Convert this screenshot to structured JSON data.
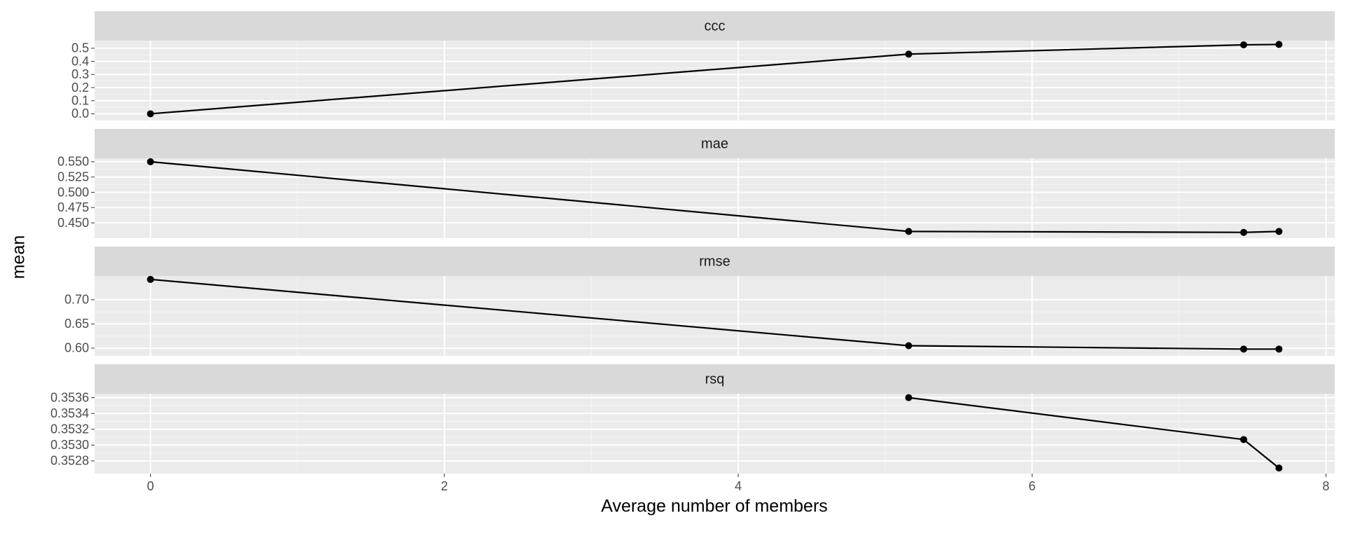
{
  "chart_data": {
    "type": "line",
    "xlabel": "Average number of members",
    "ylabel": "mean",
    "x": [
      0,
      5.16,
      7.44,
      7.68
    ],
    "xlim": [
      -0.38,
      8.06
    ],
    "xticks": [
      0,
      2,
      4,
      6,
      8
    ],
    "color": "#000000",
    "grid": true,
    "minor_grid": true,
    "facets": [
      {
        "title": "ccc",
        "values": [
          0.0,
          0.455,
          0.526,
          0.529
        ],
        "ylim": [
          -0.051,
          0.558
        ],
        "yticks": [
          {
            "value": 0,
            "label": "0.0"
          },
          0.1,
          0.2,
          0.3,
          0.4,
          0.5
        ]
      },
      {
        "title": "mae",
        "values": [
          0.55,
          0.436,
          0.4345,
          0.436
        ],
        "ylim": [
          0.425,
          0.5556
        ],
        "yticks": [
          {
            "value": 0.45,
            "label": "0.450"
          },
          0.475,
          {
            "value": 0.5,
            "label": "0.500"
          },
          0.525,
          {
            "value": 0.55,
            "label": "0.550"
          }
        ]
      },
      {
        "title": "rmse",
        "values": [
          0.742,
          0.605,
          0.598,
          0.598
        ],
        "ylim": [
          0.584,
          0.749
        ],
        "yticks": [
          {
            "value": 0.6,
            "label": "0.60"
          },
          0.65,
          {
            "value": 0.7,
            "label": "0.70"
          }
        ]
      },
      {
        "title": "rsq",
        "values": [
          null,
          0.3536,
          0.35307,
          0.35271
        ],
        "ylim": [
          0.35264,
          0.35365
        ],
        "yticks": [
          0.3528,
          {
            "value": 0.353,
            "label": "0.3530"
          },
          0.3532,
          0.3534,
          0.3536
        ]
      }
    ]
  }
}
